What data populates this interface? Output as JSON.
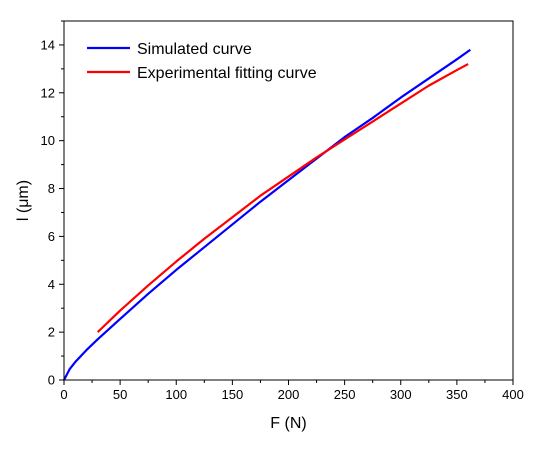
{
  "chart_data": {
    "type": "line",
    "xlabel": "F (N)",
    "ylabel": "l (μm)",
    "xlim": [
      0,
      400
    ],
    "ylim": [
      0,
      15
    ],
    "xticks": [
      0,
      50,
      100,
      150,
      200,
      250,
      300,
      350,
      400
    ],
    "yticks": [
      0,
      2,
      4,
      6,
      8,
      10,
      12,
      14
    ],
    "grid": false,
    "legend_position": "top-left",
    "series": [
      {
        "name": "Simulated curve",
        "color": "#0000ff",
        "x": [
          0,
          5,
          10,
          20,
          30,
          50,
          75,
          100,
          125,
          150,
          175,
          200,
          225,
          250,
          275,
          300,
          325,
          350,
          362
        ],
        "y": [
          0,
          0.45,
          0.75,
          1.25,
          1.7,
          2.55,
          3.6,
          4.6,
          5.55,
          6.5,
          7.45,
          8.35,
          9.25,
          10.15,
          10.95,
          11.8,
          12.6,
          13.4,
          13.8
        ]
      },
      {
        "name": "Experimental fitting curve",
        "color": "#ff0000",
        "x": [
          30,
          50,
          75,
          100,
          125,
          150,
          175,
          200,
          225,
          250,
          275,
          300,
          325,
          350,
          360
        ],
        "y": [
          2.0,
          2.9,
          3.95,
          4.95,
          5.9,
          6.8,
          7.7,
          8.5,
          9.3,
          10.05,
          10.8,
          11.55,
          12.3,
          12.95,
          13.2
        ]
      }
    ]
  }
}
